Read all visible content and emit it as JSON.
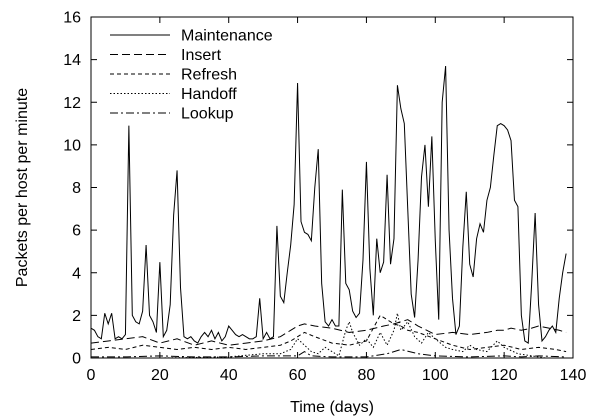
{
  "chart_data": {
    "type": "line",
    "title": "",
    "xlabel": "Time (days)",
    "ylabel": "Packets per host per minute",
    "xlim": [
      0,
      140
    ],
    "ylim": [
      0,
      16
    ],
    "xticks": [
      "0",
      "20",
      "40",
      "60",
      "80",
      "100",
      "120",
      "140"
    ],
    "yticks": [
      "0",
      "2",
      "4",
      "6",
      "8",
      "10",
      "12",
      "14",
      "16"
    ],
    "grid": false,
    "legend_position": "top-left",
    "series": [
      {
        "name": "Maintenance",
        "dash": "solid",
        "color": "#000000",
        "points": [
          [
            0,
            1.4
          ],
          [
            1,
            1.3
          ],
          [
            2,
            1.0
          ],
          [
            3,
            0.9
          ],
          [
            4,
            2.1
          ],
          [
            5,
            1.6
          ],
          [
            6,
            2.1
          ],
          [
            7,
            0.9
          ],
          [
            8,
            1.0
          ],
          [
            9,
            0.9
          ],
          [
            10,
            1.1
          ],
          [
            11,
            10.9
          ],
          [
            12,
            2.0
          ],
          [
            13,
            1.7
          ],
          [
            14,
            1.6
          ],
          [
            15,
            2.2
          ],
          [
            16,
            5.3
          ],
          [
            17,
            2.0
          ],
          [
            18,
            1.7
          ],
          [
            19,
            1.2
          ],
          [
            20,
            4.5
          ],
          [
            21,
            1.0
          ],
          [
            22,
            1.3
          ],
          [
            23,
            2.5
          ],
          [
            24,
            6.7
          ],
          [
            25,
            8.8
          ],
          [
            26,
            3.3
          ],
          [
            27,
            1.0
          ],
          [
            28,
            0.9
          ],
          [
            29,
            1.0
          ],
          [
            30,
            0.8
          ],
          [
            31,
            0.7
          ],
          [
            32,
            1.0
          ],
          [
            33,
            1.2
          ],
          [
            34,
            1.0
          ],
          [
            35,
            1.3
          ],
          [
            36,
            0.9
          ],
          [
            37,
            1.2
          ],
          [
            38,
            0.8
          ],
          [
            39,
            1.0
          ],
          [
            40,
            1.5
          ],
          [
            41,
            1.3
          ],
          [
            42,
            1.1
          ],
          [
            43,
            1.0
          ],
          [
            44,
            1.1
          ],
          [
            45,
            1.0
          ],
          [
            46,
            0.9
          ],
          [
            47,
            0.9
          ],
          [
            48,
            1.0
          ],
          [
            49,
            2.8
          ],
          [
            50,
            0.9
          ],
          [
            51,
            1.2
          ],
          [
            52,
            0.9
          ],
          [
            53,
            1.0
          ],
          [
            54,
            6.2
          ],
          [
            55,
            2.9
          ],
          [
            56,
            2.6
          ],
          [
            57,
            4.0
          ],
          [
            58,
            5.3
          ],
          [
            59,
            7.2
          ],
          [
            60,
            12.9
          ],
          [
            61,
            6.4
          ],
          [
            62,
            5.9
          ],
          [
            63,
            5.8
          ],
          [
            64,
            5.5
          ],
          [
            65,
            8.0
          ],
          [
            66,
            9.8
          ],
          [
            67,
            3.5
          ],
          [
            68,
            1.7
          ],
          [
            69,
            1.5
          ],
          [
            70,
            1.8
          ],
          [
            71,
            1.5
          ],
          [
            72,
            1.5
          ],
          [
            73,
            7.9
          ],
          [
            74,
            3.5
          ],
          [
            75,
            3.2
          ],
          [
            76,
            2.2
          ],
          [
            77,
            1.9
          ],
          [
            78,
            2.1
          ],
          [
            79,
            4.6
          ],
          [
            80,
            9.2
          ],
          [
            81,
            4.2
          ],
          [
            82,
            2.0
          ],
          [
            83,
            5.6
          ],
          [
            84,
            4.0
          ],
          [
            85,
            4.5
          ],
          [
            86,
            8.6
          ],
          [
            87,
            4.4
          ],
          [
            88,
            5.6
          ],
          [
            89,
            12.8
          ],
          [
            90,
            11.7
          ],
          [
            91,
            11.0
          ],
          [
            92,
            7.0
          ],
          [
            93,
            3.0
          ],
          [
            94,
            1.9
          ],
          [
            95,
            4.6
          ],
          [
            96,
            8.5
          ],
          [
            97,
            10.0
          ],
          [
            98,
            7.1
          ],
          [
            99,
            10.4
          ],
          [
            100,
            5.5
          ],
          [
            101,
            1.8
          ],
          [
            102,
            12.0
          ],
          [
            103,
            13.7
          ],
          [
            104,
            6.0
          ],
          [
            105,
            2.8
          ],
          [
            106,
            1.1
          ],
          [
            107,
            1.5
          ],
          [
            108,
            5.2
          ],
          [
            109,
            7.8
          ],
          [
            110,
            4.4
          ],
          [
            111,
            3.8
          ],
          [
            112,
            5.6
          ],
          [
            113,
            6.3
          ],
          [
            114,
            5.9
          ],
          [
            115,
            7.4
          ],
          [
            116,
            8.0
          ],
          [
            117,
            9.5
          ],
          [
            118,
            10.9
          ],
          [
            119,
            11.0
          ],
          [
            120,
            10.9
          ],
          [
            121,
            10.7
          ],
          [
            122,
            10.2
          ],
          [
            123,
            7.4
          ],
          [
            124,
            7.1
          ],
          [
            125,
            2.0
          ],
          [
            126,
            0.8
          ],
          [
            127,
            0.7
          ],
          [
            128,
            3.5
          ],
          [
            129,
            6.8
          ],
          [
            130,
            2.5
          ],
          [
            131,
            0.8
          ],
          [
            132,
            1.0
          ],
          [
            133,
            1.3
          ],
          [
            134,
            1.5
          ],
          [
            135,
            1.2
          ],
          [
            136,
            2.8
          ],
          [
            137,
            4.0
          ],
          [
            138,
            4.9
          ]
        ]
      },
      {
        "name": "Insert",
        "dash": "8,4",
        "color": "#000000",
        "points": [
          [
            0,
            0.7
          ],
          [
            5,
            0.8
          ],
          [
            10,
            0.9
          ],
          [
            15,
            1.0
          ],
          [
            20,
            0.7
          ],
          [
            25,
            0.9
          ],
          [
            30,
            0.6
          ],
          [
            35,
            0.8
          ],
          [
            40,
            0.6
          ],
          [
            45,
            0.7
          ],
          [
            50,
            0.8
          ],
          [
            55,
            1.0
          ],
          [
            58,
            1.3
          ],
          [
            60,
            1.5
          ],
          [
            62,
            1.6
          ],
          [
            65,
            1.5
          ],
          [
            70,
            1.4
          ],
          [
            75,
            1.2
          ],
          [
            80,
            1.3
          ],
          [
            85,
            1.5
          ],
          [
            88,
            1.6
          ],
          [
            90,
            1.7
          ],
          [
            92,
            1.8
          ],
          [
            95,
            1.5
          ],
          [
            100,
            1.1
          ],
          [
            105,
            1.2
          ],
          [
            110,
            1.1
          ],
          [
            115,
            1.2
          ],
          [
            118,
            1.3
          ],
          [
            120,
            1.3
          ],
          [
            122,
            1.4
          ],
          [
            125,
            1.3
          ],
          [
            128,
            1.4
          ],
          [
            130,
            1.5
          ],
          [
            133,
            1.4
          ],
          [
            136,
            1.3
          ],
          [
            138,
            1.2
          ]
        ]
      },
      {
        "name": "Refresh",
        "dash": "4,3",
        "color": "#000000",
        "points": [
          [
            0,
            0.4
          ],
          [
            5,
            0.5
          ],
          [
            10,
            0.4
          ],
          [
            15,
            0.6
          ],
          [
            20,
            0.5
          ],
          [
            25,
            0.4
          ],
          [
            30,
            0.5
          ],
          [
            35,
            0.4
          ],
          [
            40,
            0.5
          ],
          [
            45,
            0.4
          ],
          [
            50,
            0.5
          ],
          [
            55,
            0.6
          ],
          [
            58,
            0.8
          ],
          [
            60,
            1.0
          ],
          [
            62,
            1.2
          ],
          [
            65,
            1.0
          ],
          [
            70,
            0.7
          ],
          [
            75,
            0.6
          ],
          [
            80,
            0.8
          ],
          [
            84,
            2.0
          ],
          [
            86,
            1.8
          ],
          [
            88,
            1.6
          ],
          [
            90,
            1.5
          ],
          [
            92,
            1.3
          ],
          [
            95,
            1.2
          ],
          [
            100,
            0.9
          ],
          [
            105,
            0.6
          ],
          [
            110,
            0.4
          ],
          [
            115,
            0.5
          ],
          [
            120,
            0.6
          ],
          [
            125,
            0.4
          ],
          [
            130,
            0.5
          ],
          [
            135,
            0.4
          ],
          [
            138,
            0.3
          ]
        ]
      },
      {
        "name": "Handoff",
        "dash": "1.5,2",
        "color": "#000000",
        "points": [
          [
            0,
            0.0
          ],
          [
            20,
            0.0
          ],
          [
            40,
            0.05
          ],
          [
            50,
            0.2
          ],
          [
            55,
            0.2
          ],
          [
            58,
            0.4
          ],
          [
            60,
            0.9
          ],
          [
            62,
            0.6
          ],
          [
            64,
            0.3
          ],
          [
            66,
            0.2
          ],
          [
            68,
            0.5
          ],
          [
            70,
            0.3
          ],
          [
            72,
            0.1
          ],
          [
            74,
            1.3
          ],
          [
            75,
            1.7
          ],
          [
            76,
            1.2
          ],
          [
            78,
            0.6
          ],
          [
            80,
            0.9
          ],
          [
            82,
            0.5
          ],
          [
            84,
            1.2
          ],
          [
            86,
            0.6
          ],
          [
            88,
            1.3
          ],
          [
            89,
            2.1
          ],
          [
            90,
            1.3
          ],
          [
            92,
            1.7
          ],
          [
            94,
            1.0
          ],
          [
            96,
            0.7
          ],
          [
            98,
            1.2
          ],
          [
            100,
            0.9
          ],
          [
            103,
            0.5
          ],
          [
            105,
            0.4
          ],
          [
            108,
            0.3
          ],
          [
            110,
            0.6
          ],
          [
            112,
            0.4
          ],
          [
            115,
            0.3
          ],
          [
            118,
            0.8
          ],
          [
            120,
            0.5
          ],
          [
            124,
            0.2
          ],
          [
            128,
            0.1
          ],
          [
            132,
            0.0
          ],
          [
            138,
            0.0
          ]
        ]
      },
      {
        "name": "Lookup",
        "dash": "8,3,2,3",
        "color": "#000000",
        "points": [
          [
            0,
            0.05
          ],
          [
            10,
            0.05
          ],
          [
            20,
            0.1
          ],
          [
            30,
            0.05
          ],
          [
            40,
            0.05
          ],
          [
            50,
            0.1
          ],
          [
            60,
            0.1
          ],
          [
            62,
            0.3
          ],
          [
            64,
            0.1
          ],
          [
            70,
            0.05
          ],
          [
            80,
            0.05
          ],
          [
            86,
            0.2
          ],
          [
            90,
            0.4
          ],
          [
            95,
            0.2
          ],
          [
            100,
            0.1
          ],
          [
            110,
            0.05
          ],
          [
            120,
            0.1
          ],
          [
            125,
            0.05
          ],
          [
            130,
            0.1
          ],
          [
            138,
            0.05
          ]
        ]
      }
    ]
  }
}
